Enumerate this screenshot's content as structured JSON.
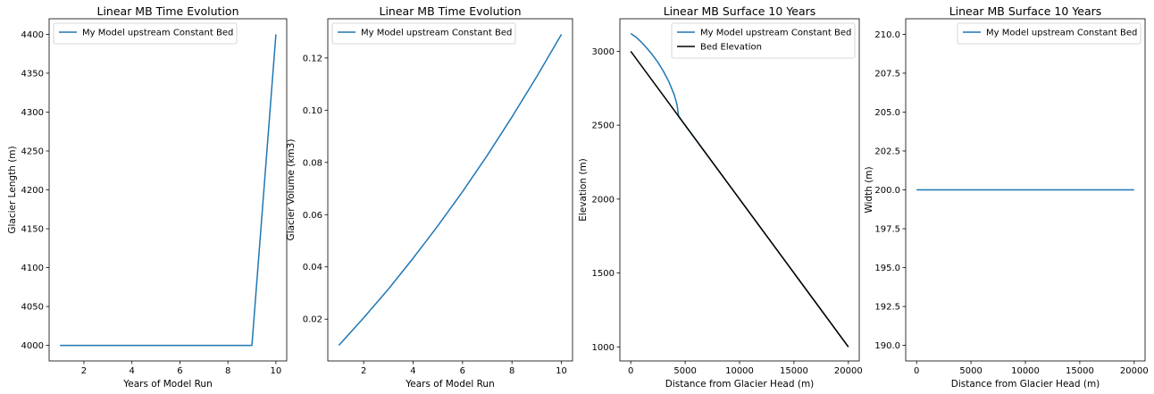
{
  "chart_data": [
    {
      "type": "line",
      "title": "Linear MB Time Evolution",
      "xlabel": "Years of Model Run",
      "ylabel": "Glacier Length (m)",
      "xlim": [
        0.55,
        10.45
      ],
      "ylim": [
        3980,
        4420
      ],
      "xticks": [
        2,
        4,
        6,
        8,
        10
      ],
      "xtick_labels": [
        "2",
        "4",
        "6",
        "8",
        "10"
      ],
      "yticks": [
        4000,
        4050,
        4100,
        4150,
        4200,
        4250,
        4300,
        4350,
        4400
      ],
      "ytick_labels": [
        "4000",
        "4050",
        "4100",
        "4150",
        "4200",
        "4250",
        "4300",
        "4350",
        "4400"
      ],
      "legend": "top-left",
      "grid": false,
      "series": [
        {
          "name": "My Model upstream Constant Bed",
          "color": "#1f77b4",
          "x": [
            1,
            2,
            3,
            4,
            5,
            6,
            7,
            8,
            9,
            10
          ],
          "y": [
            4000,
            4000,
            4000,
            4000,
            4000,
            4000,
            4000,
            4000,
            4000,
            4400
          ]
        }
      ]
    },
    {
      "type": "line",
      "title": "Linear MB Time Evolution",
      "xlabel": "Years of Model Run",
      "ylabel": "Glacier Volume (km3)",
      "xlim": [
        0.55,
        10.45
      ],
      "ylim": [
        0.004,
        0.135
      ],
      "xticks": [
        2,
        4,
        6,
        8,
        10
      ],
      "xtick_labels": [
        "2",
        "4",
        "6",
        "8",
        "10"
      ],
      "yticks": [
        0.02,
        0.04,
        0.06,
        0.08,
        0.1,
        0.12
      ],
      "ytick_labels": [
        "0.02",
        "0.04",
        "0.06",
        "0.08",
        "0.10",
        "0.12"
      ],
      "legend": "top-left",
      "grid": false,
      "series": [
        {
          "name": "My Model upstream Constant Bed",
          "color": "#1f77b4",
          "x": [
            1,
            2,
            3,
            4,
            5,
            6,
            7,
            8,
            9,
            10
          ],
          "y": [
            0.01,
            0.0205,
            0.0315,
            0.0433,
            0.0557,
            0.0688,
            0.0827,
            0.0974,
            0.1128,
            0.129
          ]
        }
      ]
    },
    {
      "type": "line",
      "title": "Linear MB Surface 10 Years",
      "xlabel": "Distance from Glacier Head (m)",
      "ylabel": "Elevation (m)",
      "xlim": [
        -1000,
        21000
      ],
      "ylim": [
        905,
        3220
      ],
      "xticks": [
        0,
        5000,
        10000,
        15000,
        20000
      ],
      "xtick_labels": [
        "0",
        "5000",
        "10000",
        "15000",
        "20000"
      ],
      "yticks": [
        1000,
        1500,
        2000,
        2500,
        3000
      ],
      "ytick_labels": [
        "1000",
        "1500",
        "2000",
        "2500",
        "3000"
      ],
      "legend": "top-right",
      "grid": false,
      "series": [
        {
          "name": "My Model upstream Constant Bed",
          "color": "#1f77b4",
          "x": [
            0,
            500,
            1000,
            1500,
            2000,
            2500,
            3000,
            3500,
            4000,
            4250,
            4400,
            4400,
            5000,
            10000,
            15000,
            20000
          ],
          "y": [
            3120,
            3095,
            3060,
            3020,
            2975,
            2925,
            2865,
            2795,
            2705,
            2640,
            2560,
            2560,
            2500,
            2000,
            1500,
            1000
          ]
        },
        {
          "name": "Bed Elevation",
          "color": "#000000",
          "x": [
            0,
            20000
          ],
          "y": [
            3000,
            1000
          ]
        }
      ]
    },
    {
      "type": "line",
      "title": "Linear MB Surface 10 Years",
      "xlabel": "Distance from Glacier Head (m)",
      "ylabel": "Width (m)",
      "xlim": [
        -1000,
        21000
      ],
      "ylim": [
        189,
        211
      ],
      "xticks": [
        0,
        5000,
        10000,
        15000,
        20000
      ],
      "xtick_labels": [
        "0",
        "5000",
        "10000",
        "15000",
        "20000"
      ],
      "yticks": [
        190.0,
        192.5,
        195.0,
        197.5,
        200.0,
        202.5,
        205.0,
        207.5,
        210.0
      ],
      "ytick_labels": [
        "190.0",
        "192.5",
        "195.0",
        "197.5",
        "200.0",
        "202.5",
        "205.0",
        "207.5",
        "210.0"
      ],
      "legend": "top-right",
      "grid": false,
      "series": [
        {
          "name": "My Model upstream Constant Bed",
          "color": "#1f77b4",
          "x": [
            0,
            20000
          ],
          "y": [
            200,
            200
          ]
        }
      ]
    }
  ]
}
